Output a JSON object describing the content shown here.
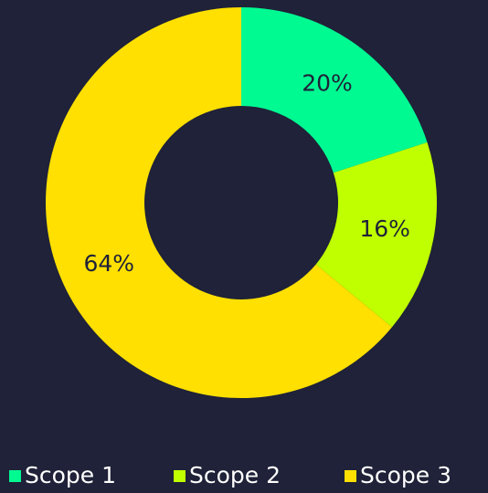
{
  "chart_data": {
    "type": "donut",
    "categories": [
      "Scope 1",
      "Scope 2",
      "Scope 3"
    ],
    "values": [
      20,
      16,
      64
    ],
    "value_labels": [
      "20%",
      "16%",
      "64%"
    ],
    "colors": [
      "#00fa92",
      "#c0ff00",
      "#ffe000"
    ],
    "legend": "bottom"
  }
}
